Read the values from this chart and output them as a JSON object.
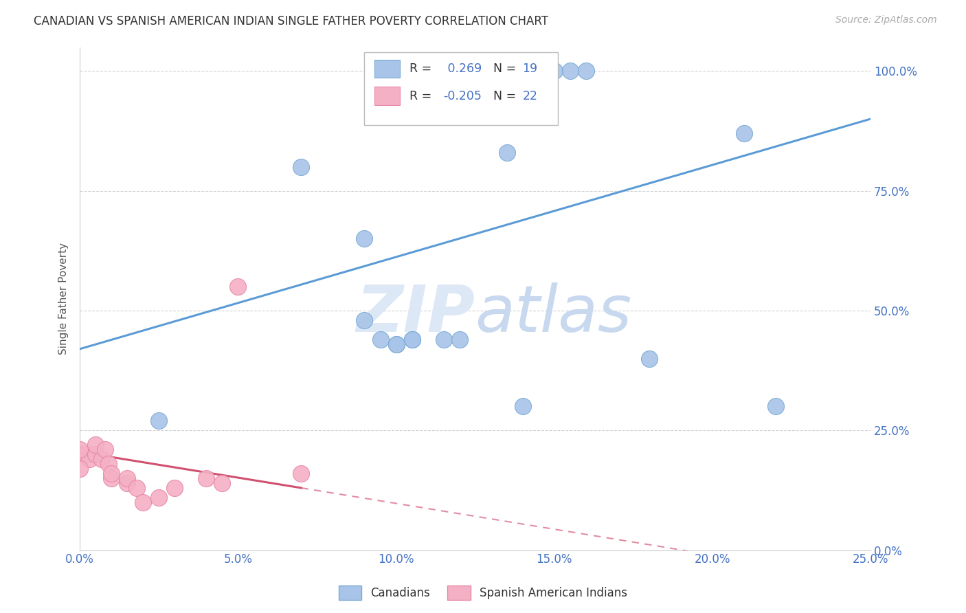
{
  "title": "CANADIAN VS SPANISH AMERICAN INDIAN SINGLE FATHER POVERTY CORRELATION CHART",
  "source": "Source: ZipAtlas.com",
  "ylabel": "Single Father Poverty",
  "xlim": [
    0.0,
    0.25
  ],
  "ylim": [
    0.0,
    1.05
  ],
  "canadian_R": 0.269,
  "canadian_N": 19,
  "spanish_R": -0.205,
  "spanish_N": 22,
  "canadian_color": "#a8c4e8",
  "canadian_edge": "#7aaad4",
  "spanish_color": "#f4b0c4",
  "spanish_edge": "#e888a8",
  "trendline_canadian_color": "#5b9bd5",
  "trendline_spanish_color": "#d05070",
  "watermark_color": "#dce8f5",
  "legend_label_canadian": "Canadians",
  "legend_label_spanish": "Spanish American Indians",
  "canadian_x": [
    0.025,
    0.07,
    0.09,
    0.09,
    0.095,
    0.1,
    0.105,
    0.1,
    0.105,
    0.115,
    0.12,
    0.135,
    0.14,
    0.15,
    0.155,
    0.16,
    0.18,
    0.21,
    0.22
  ],
  "canadian_y": [
    0.27,
    0.8,
    0.65,
    0.48,
    0.44,
    0.43,
    0.44,
    0.43,
    0.44,
    0.44,
    0.44,
    0.83,
    0.3,
    1.0,
    1.0,
    1.0,
    0.4,
    0.87,
    0.3
  ],
  "spanish_x": [
    0.0,
    0.002,
    0.003,
    0.005,
    0.005,
    0.007,
    0.008,
    0.009,
    0.01,
    0.01,
    0.015,
    0.015,
    0.018,
    0.02,
    0.025,
    0.03,
    0.04,
    0.045,
    0.05,
    0.07,
    0.0,
    0.0
  ],
  "spanish_y": [
    0.2,
    0.2,
    0.19,
    0.2,
    0.22,
    0.19,
    0.21,
    0.18,
    0.15,
    0.16,
    0.14,
    0.15,
    0.13,
    0.1,
    0.11,
    0.13,
    0.15,
    0.14,
    0.55,
    0.16,
    0.17,
    0.21
  ],
  "trendline_can_x0": 0.0,
  "trendline_can_y0": 0.42,
  "trendline_can_x1": 0.25,
  "trendline_can_y1": 0.9,
  "trendline_spa_x0": 0.0,
  "trendline_spa_y0": 0.205,
  "trendline_spa_x1": 0.07,
  "trendline_spa_y1": 0.13,
  "trendline_spa_dash_x0": 0.07,
  "trendline_spa_dash_y0": 0.13,
  "trendline_spa_dash_x1": 0.2,
  "trendline_spa_dash_y1": -0.01
}
